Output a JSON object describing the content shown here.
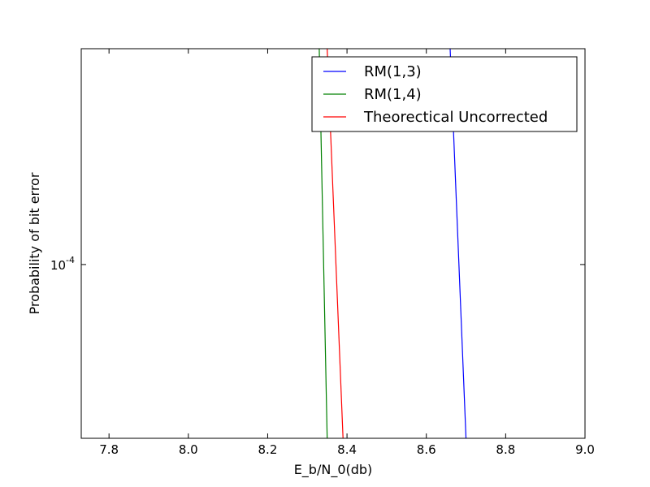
{
  "chart_data": {
    "type": "line",
    "xlabel": "E_b/N_0(db)",
    "ylabel": "Probability of bit error",
    "xlim": [
      7.73,
      9.0
    ],
    "ylim": [
      5.15e-05,
      0.000228
    ],
    "yscale": "log",
    "x_ticks": [
      7.8,
      8.0,
      8.2,
      8.4,
      8.6,
      8.8,
      9.0
    ],
    "x_tick_labels": [
      "7.8",
      "8.0",
      "8.2",
      "8.4",
      "8.6",
      "8.8",
      "9.0"
    ],
    "y_ticks": [
      {
        "value": 0.0001,
        "base": "10",
        "exp": "-4"
      }
    ],
    "grid": false,
    "legend_position": "upper-right",
    "series": [
      {
        "name": "RM(1,3)",
        "color": "#0000ff",
        "x": [
          8.66,
          8.7
        ],
        "y": [
          0.000228,
          5.15e-05
        ]
      },
      {
        "name": "RM(1,4)",
        "color": "#008000",
        "x": [
          8.33,
          8.35
        ],
        "y": [
          0.000228,
          5.15e-05
        ]
      },
      {
        "name": "Theorectical Uncorrected",
        "color": "#ff0000",
        "x": [
          8.35,
          8.39
        ],
        "y": [
          0.000228,
          5.15e-05
        ]
      }
    ]
  }
}
